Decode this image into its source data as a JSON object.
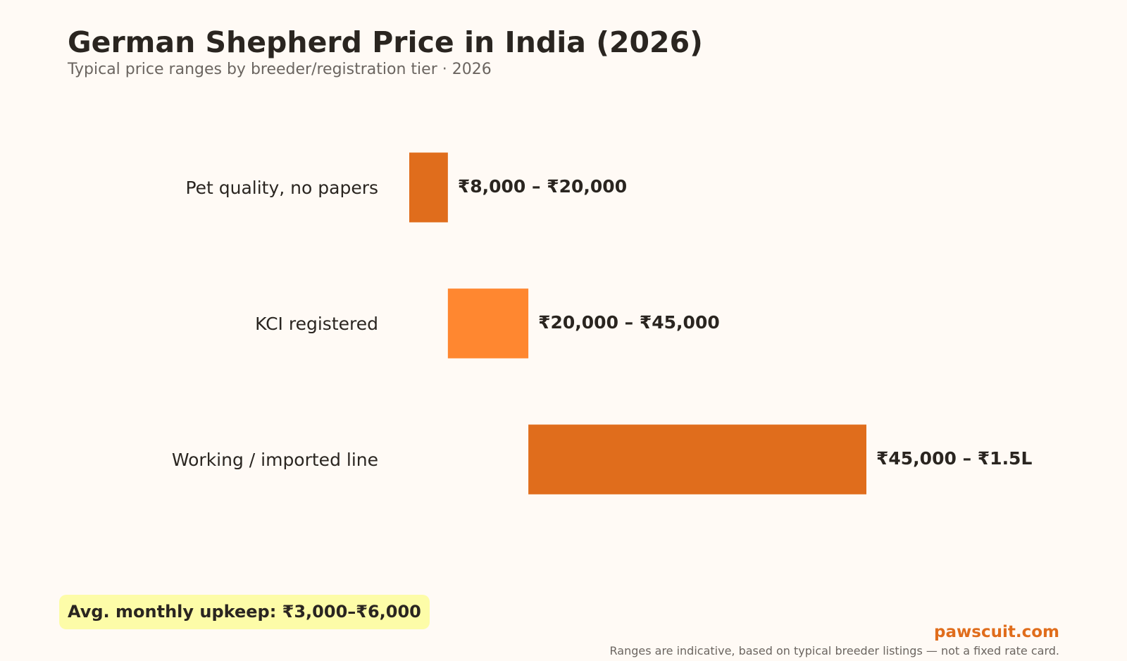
{
  "header": {
    "title": "German Shepherd Price in India (2026)",
    "subtitle": "Typical price ranges by breeder/registration tier · 2026"
  },
  "chart_data": {
    "type": "bar",
    "orientation": "horizontal-range",
    "categories": [
      "Pet quality, no papers",
      "KCI registered",
      "Working / imported line"
    ],
    "ranges": [
      {
        "low": 8000,
        "high": 20000,
        "label": "₹8,000 – ₹20,000",
        "color": "#e06d1c"
      },
      {
        "low": 20000,
        "high": 45000,
        "label": "₹20,000 – ₹45,000",
        "color": "#ff8730"
      },
      {
        "low": 45000,
        "high": 150000,
        "label": "₹45,000 – ₹1.5L",
        "color": "#e06d1c"
      }
    ],
    "xlim": [
      0,
      150000
    ],
    "grid": false,
    "legend": "none"
  },
  "footer": {
    "note": "Avg. monthly upkeep: ₹3,000–₹6,000",
    "brand": "pawscuit.com",
    "disclaimer": "Ranges are indicative, based on typical breeder listings — not a fixed rate card."
  }
}
